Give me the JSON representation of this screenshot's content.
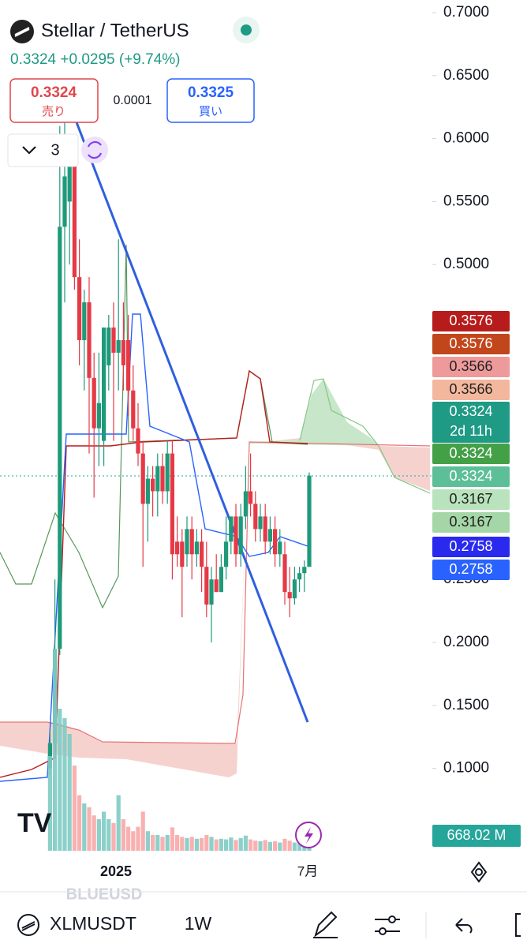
{
  "header": {
    "title": "Stellar / TetherUS",
    "price_line": "0.3324 +0.0295 (+9.74%)"
  },
  "trade": {
    "sell_price": "0.3324",
    "sell_label": "売り",
    "spread": "0.0001",
    "buy_price": "0.3325",
    "buy_label": "買い"
  },
  "indicators": {
    "count": "3"
  },
  "chart": {
    "ylim": [
      0.05,
      0.7
    ],
    "yticks": [
      {
        "value": 0.7,
        "label": "0.7000"
      },
      {
        "value": 0.65,
        "label": "0.6500"
      },
      {
        "value": 0.6,
        "label": "0.6000"
      },
      {
        "value": 0.55,
        "label": "0.5500"
      },
      {
        "value": 0.5,
        "label": "0.5000"
      },
      {
        "value": 0.25,
        "label": "0.2500"
      },
      {
        "value": 0.2,
        "label": "0.2000"
      },
      {
        "value": 0.15,
        "label": "0.1500"
      },
      {
        "value": 0.1,
        "label": "0.1000"
      }
    ],
    "x_labels": [
      "2025",
      "7月"
    ],
    "candles": [
      [
        0.1,
        0.13,
        0.095,
        0.12
      ],
      [
        0.12,
        0.25,
        0.11,
        0.195
      ],
      [
        0.195,
        0.61,
        0.19,
        0.53
      ],
      [
        0.53,
        0.62,
        0.47,
        0.57
      ],
      [
        0.55,
        0.59,
        0.5,
        0.585
      ],
      [
        0.58,
        0.6,
        0.48,
        0.49
      ],
      [
        0.49,
        0.52,
        0.42,
        0.44
      ],
      [
        0.44,
        0.48,
        0.4,
        0.47
      ],
      [
        0.47,
        0.49,
        0.35,
        0.41
      ],
      [
        0.41,
        0.43,
        0.315,
        0.37
      ],
      [
        0.37,
        0.43,
        0.34,
        0.39
      ],
      [
        0.36,
        0.45,
        0.34,
        0.45
      ],
      [
        0.42,
        0.46,
        0.4,
        0.45
      ],
      [
        0.45,
        0.47,
        0.36,
        0.43
      ],
      [
        0.43,
        0.52,
        0.4,
        0.44
      ],
      [
        0.44,
        0.47,
        0.4,
        0.42
      ],
      [
        0.44,
        0.46,
        0.38,
        0.4
      ],
      [
        0.4,
        0.42,
        0.36,
        0.37
      ],
      [
        0.37,
        0.39,
        0.34,
        0.35
      ],
      [
        0.35,
        0.36,
        0.26,
        0.31
      ],
      [
        0.31,
        0.34,
        0.28,
        0.33
      ],
      [
        0.33,
        0.34,
        0.3,
        0.32
      ],
      [
        0.32,
        0.35,
        0.3,
        0.34
      ],
      [
        0.34,
        0.35,
        0.31,
        0.32
      ],
      [
        0.32,
        0.36,
        0.31,
        0.35
      ],
      [
        0.35,
        0.36,
        0.25,
        0.27
      ],
      [
        0.28,
        0.3,
        0.26,
        0.27
      ],
      [
        0.28,
        0.29,
        0.22,
        0.26
      ],
      [
        0.27,
        0.3,
        0.26,
        0.29
      ],
      [
        0.29,
        0.3,
        0.25,
        0.27
      ],
      [
        0.27,
        0.29,
        0.26,
        0.28
      ],
      [
        0.28,
        0.29,
        0.24,
        0.26
      ],
      [
        0.26,
        0.28,
        0.22,
        0.23
      ],
      [
        0.23,
        0.26,
        0.2,
        0.25
      ],
      [
        0.25,
        0.27,
        0.24,
        0.24
      ],
      [
        0.24,
        0.27,
        0.24,
        0.26
      ],
      [
        0.26,
        0.3,
        0.25,
        0.28
      ],
      [
        0.28,
        0.3,
        0.27,
        0.3
      ],
      [
        0.3,
        0.31,
        0.26,
        0.27
      ],
      [
        0.27,
        0.31,
        0.26,
        0.3
      ],
      [
        0.3,
        0.34,
        0.29,
        0.32
      ],
      [
        0.32,
        0.35,
        0.3,
        0.31
      ],
      [
        0.31,
        0.32,
        0.28,
        0.29
      ],
      [
        0.29,
        0.31,
        0.28,
        0.3
      ],
      [
        0.3,
        0.31,
        0.27,
        0.28
      ],
      [
        0.28,
        0.3,
        0.27,
        0.29
      ],
      [
        0.29,
        0.3,
        0.26,
        0.27
      ],
      [
        0.27,
        0.29,
        0.26,
        0.28
      ],
      [
        0.27,
        0.28,
        0.23,
        0.24
      ],
      [
        0.24,
        0.26,
        0.22,
        0.235
      ],
      [
        0.235,
        0.26,
        0.23,
        0.25
      ],
      [
        0.25,
        0.26,
        0.24,
        0.255
      ],
      [
        0.255,
        0.265,
        0.24,
        0.26
      ],
      [
        0.26,
        0.335,
        0.26,
        0.3324
      ]
    ],
    "volume_lim": [
      0,
      35000
    ],
    "volumes": [
      15000,
      32000,
      22500,
      21000,
      18500,
      13500,
      8800,
      7500,
      6900,
      5600,
      5000,
      6200,
      5000,
      4400,
      8800,
      5000,
      3800,
      3100,
      3800,
      6200,
      3100,
      2500,
      2500,
      2200,
      2500,
      3700,
      2500,
      2200,
      2000,
      2200,
      1900,
      2000,
      2500,
      2200,
      1800,
      1900,
      1800,
      2100,
      1700,
      2000,
      2400,
      1800,
      1600,
      1500,
      1700,
      1400,
      1500,
      1300,
      1900,
      1600,
      1300,
      1200,
      1000,
      668.02
    ],
    "volume_label": "668.02 M",
    "watermark": "BLUEUSD",
    "price_tags": [
      {
        "label": "0.3576",
        "color": "#b71c1c",
        "text": "#ffffff"
      },
      {
        "label": "0.3576",
        "color": "#c2461c",
        "text": "#ffffff"
      },
      {
        "label": "0.3566",
        "color": "#ef9a9a",
        "text": "#222222"
      },
      {
        "label": "0.3566",
        "color": "#f3b79d",
        "text": "#222222"
      },
      {
        "label": "0.3324",
        "sub": "2d 11h",
        "color": "#1e9a85",
        "text": "#ffffff"
      },
      {
        "label": "0.3324",
        "color": "#43a047",
        "text": "#ffffff"
      },
      {
        "label": "0.3324",
        "color": "#5cbf98",
        "text": "#ffffff"
      },
      {
        "label": "0.3167",
        "color": "#b9e3bc",
        "text": "#222222"
      },
      {
        "label": "0.3167",
        "color": "#a5d6a7",
        "text": "#222222"
      },
      {
        "label": "0.2758",
        "color": "#2a2aee",
        "text": "#ffffff"
      },
      {
        "label": "0.2758",
        "color": "#2962ff",
        "text": "#ffffff"
      }
    ]
  },
  "toolbar": {
    "symbol": "XLMUSDT",
    "interval": "1W"
  }
}
